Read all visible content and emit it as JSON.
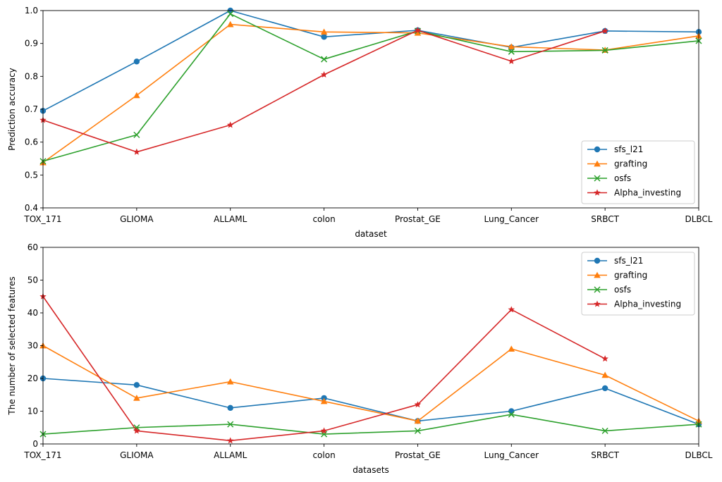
{
  "chart_data": [
    {
      "type": "line",
      "title": "",
      "xlabel": "dataset",
      "ylabel": "Prediction accuracy",
      "categories": [
        "TOX_171",
        "GLIOMA",
        "ALLAML",
        "colon",
        "Prostat_GE",
        "Lung_Cancer",
        "SRBCT",
        "DLBCL"
      ],
      "ylim": [
        0.4,
        1.0
      ],
      "yticks": [
        "0.4",
        "0.5",
        "0.6",
        "0.7",
        "0.8",
        "0.9",
        "1.0"
      ],
      "legend_position": "lower-right",
      "grid": false,
      "series": [
        {
          "name": "sfs_l21",
          "color": "#1f77b4",
          "marker": "circle",
          "values": [
            0.695,
            0.845,
            1.0,
            0.92,
            0.94,
            0.888,
            0.938,
            0.935
          ]
        },
        {
          "name": "grafting",
          "color": "#ff7f0e",
          "marker": "triangle",
          "values": [
            0.538,
            0.742,
            0.958,
            0.935,
            0.932,
            0.89,
            0.88,
            0.923
          ]
        },
        {
          "name": "osfs",
          "color": "#2ca02c",
          "marker": "x",
          "values": [
            0.542,
            0.622,
            0.99,
            0.852,
            0.938,
            0.875,
            0.879,
            0.908
          ]
        },
        {
          "name": "Alpha_investing",
          "color": "#d62728",
          "marker": "star",
          "values": [
            0.667,
            0.57,
            0.652,
            0.805,
            0.94,
            0.846,
            0.938,
            null
          ]
        }
      ]
    },
    {
      "type": "line",
      "title": "",
      "xlabel": "datasets",
      "ylabel": "The number of selected features",
      "categories": [
        "TOX_171",
        "GLIOMA",
        "ALLAML",
        "colon",
        "Prostat_GE",
        "Lung_Cancer",
        "SRBCT",
        "DLBCL"
      ],
      "ylim": [
        0,
        60
      ],
      "yticks": [
        "0",
        "10",
        "20",
        "30",
        "40",
        "50",
        "60"
      ],
      "legend_position": "upper-right",
      "grid": false,
      "series": [
        {
          "name": "sfs_l21",
          "color": "#1f77b4",
          "marker": "circle",
          "values": [
            20,
            18,
            11,
            14,
            7,
            10,
            17,
            6
          ]
        },
        {
          "name": "grafting",
          "color": "#ff7f0e",
          "marker": "triangle",
          "values": [
            30,
            14,
            19,
            13,
            7,
            29,
            21,
            7
          ]
        },
        {
          "name": "osfs",
          "color": "#2ca02c",
          "marker": "x",
          "values": [
            3,
            5,
            6,
            3,
            4,
            9,
            4,
            6
          ]
        },
        {
          "name": "Alpha_investing",
          "color": "#d62728",
          "marker": "star",
          "values": [
            45,
            4,
            1,
            4,
            12,
            41,
            26,
            null
          ]
        }
      ]
    }
  ]
}
